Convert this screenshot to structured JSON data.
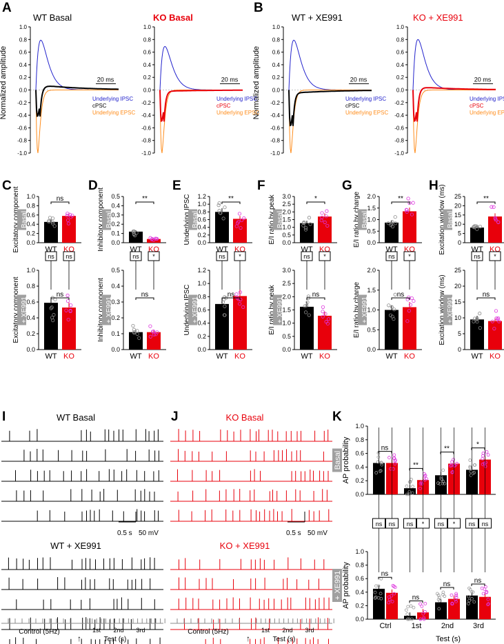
{
  "colors": {
    "wt": "#000000",
    "ko": "#e8000b",
    "ipsc": "#2222cc",
    "epsc": "#ff8c1a",
    "ko_dots": "#dd33dd",
    "grey_box": "#a0a0a0"
  },
  "panel_labels": [
    "A",
    "B",
    "C",
    "D",
    "E",
    "F",
    "G",
    "H",
    "I",
    "J",
    "K"
  ],
  "traces": {
    "wt_basal_title": "WT  Basal",
    "ko_basal_title": "KO  Basal",
    "wt_xe_title": "WT + XE991",
    "ko_xe_title": "KO + XE991",
    "y_label": "Normalized amplitude",
    "y_ticks": [
      "1.0",
      "0.8",
      "0.6",
      "0.4",
      "0.2",
      "0.0",
      "-0.2",
      "-0.4",
      "-0.6",
      "-0.8",
      "-1.0"
    ],
    "scale": "20 ms",
    "legend": [
      "Underlying IPSC",
      "cPSC",
      "Underlying EPSC"
    ]
  },
  "bars": {
    "row_basal": "Basal",
    "row_xe": "+ XE991",
    "x_labels": [
      "WT",
      "KO"
    ],
    "panels": [
      {
        "id": "C",
        "top_ylabel": "Excitatory component",
        "bot_ylabel": "Excitatory component",
        "top_ticks": [
          "0.0",
          "0.2",
          "0.4",
          "0.6",
          "0.8",
          "1.0"
        ],
        "bot_ticks": [
          "0.0",
          "0.2",
          "0.4",
          "0.6",
          "0.8",
          "1.0"
        ],
        "top_sig": "ns",
        "bot_sig": "ns",
        "box_l": "ns",
        "box_r": "ns"
      },
      {
        "id": "D",
        "top_ylabel": "Inhibitory component",
        "bot_ylabel": "Inhibitory component",
        "top_ticks": [
          "0.0",
          "0.1",
          "0.2",
          "0.3",
          "0.4",
          "0.5"
        ],
        "bot_ticks": [
          "0.0",
          "0.1",
          "0.2",
          "0.3",
          "0.4",
          "0.5"
        ],
        "top_sig": "**",
        "bot_sig": "ns",
        "box_l": "ns",
        "box_r": "*"
      },
      {
        "id": "E",
        "top_ylabel": "Underlying IPSC",
        "bot_ylabel": "Underlying IPSC",
        "top_ticks": [
          "0.0",
          "0.2",
          "0.4",
          "0.6",
          "0.8",
          "1.0",
          "1.2"
        ],
        "bot_ticks": [
          "0.0",
          "0.2",
          "0.4",
          "0.6",
          "0.8",
          "1.0",
          "1.2"
        ],
        "top_sig": "**",
        "bot_sig": "ns",
        "box_l": "ns",
        "box_r": "*"
      },
      {
        "id": "F",
        "top_ylabel": "E/I ratio by peak",
        "bot_ylabel": "E/I ratio by peak",
        "top_ticks": [
          "0.0",
          "0.5",
          "1.0",
          "1.5",
          "2.0",
          "2.5",
          "3.0"
        ],
        "bot_ticks": [
          "0.0",
          "0.5",
          "1.0",
          "1.5",
          "2.0",
          "2.5",
          "3.0"
        ],
        "top_sig": "*",
        "bot_sig": "ns",
        "box_l": "ns",
        "box_r": "*"
      },
      {
        "id": "G",
        "top_ylabel": "E/I ratio by charge",
        "bot_ylabel": "E/I ratio by charge",
        "top_ticks": [
          "0.0",
          "0.5",
          "1.0",
          "1.5",
          "2.0"
        ],
        "bot_ticks": [
          "0.0",
          "0.5",
          "1.0",
          "1.5",
          "2.0"
        ],
        "top_sig": "**",
        "bot_sig": "ns",
        "box_l": "ns",
        "box_r": "*"
      },
      {
        "id": "H",
        "top_ylabel": "Excitation window (ms)",
        "bot_ylabel": "Excitation window (ms)",
        "top_ticks": [
          "0",
          "5",
          "10",
          "15",
          "20",
          "25"
        ],
        "bot_ticks": [
          "0",
          "5",
          "10",
          "15",
          "20",
          "25"
        ],
        "top_sig": "**",
        "bot_sig": "ns",
        "box_l": "ns",
        "box_r": "*"
      }
    ]
  },
  "chart_data": [
    {
      "type": "bar",
      "panel": "C",
      "row": "Basal",
      "categories": [
        "WT",
        "KO"
      ],
      "values": [
        0.45,
        0.58
      ],
      "ylim": [
        0,
        1.0
      ],
      "ylabel": "Excitatory component"
    },
    {
      "type": "bar",
      "panel": "C",
      "row": "+ XE991",
      "categories": [
        "WT",
        "KO"
      ],
      "values": [
        0.59,
        0.53
      ],
      "ylim": [
        0,
        1.0
      ],
      "ylabel": "Excitatory component"
    },
    {
      "type": "bar",
      "panel": "D",
      "row": "Basal",
      "categories": [
        "WT",
        "KO"
      ],
      "values": [
        0.12,
        0.04
      ],
      "ylim": [
        0,
        0.5
      ],
      "ylabel": "Inhibitory component"
    },
    {
      "type": "bar",
      "panel": "D",
      "row": "+ XE991",
      "categories": [
        "WT",
        "KO"
      ],
      "values": [
        0.11,
        0.11
      ],
      "ylim": [
        0,
        0.5
      ],
      "ylabel": "Inhibitory component"
    },
    {
      "type": "bar",
      "panel": "E",
      "row": "Basal",
      "categories": [
        "WT",
        "KO"
      ],
      "values": [
        0.8,
        0.62
      ],
      "ylim": [
        0,
        1.2
      ],
      "ylabel": "Underlying IPSC"
    },
    {
      "type": "bar",
      "panel": "E",
      "row": "+ XE991",
      "categories": [
        "WT",
        "KO"
      ],
      "values": [
        0.69,
        0.81
      ],
      "ylim": [
        0,
        1.2
      ],
      "ylabel": "Underlying IPSC"
    },
    {
      "type": "bar",
      "panel": "F",
      "row": "Basal",
      "categories": [
        "WT",
        "KO"
      ],
      "values": [
        1.27,
        1.7
      ],
      "ylim": [
        0,
        3.0
      ],
      "ylabel": "E/I ratio by peak"
    },
    {
      "type": "bar",
      "panel": "F",
      "row": "+ XE991",
      "categories": [
        "WT",
        "KO"
      ],
      "values": [
        1.62,
        1.28
      ],
      "ylim": [
        0,
        3.0
      ],
      "ylabel": "E/I ratio by peak"
    },
    {
      "type": "bar",
      "panel": "G",
      "row": "Basal",
      "categories": [
        "WT",
        "KO"
      ],
      "values": [
        0.87,
        1.36
      ],
      "ylim": [
        0,
        2.0
      ],
      "ylabel": "E/I ratio by charge"
    },
    {
      "type": "bar",
      "panel": "G",
      "row": "+ XE991",
      "categories": [
        "WT",
        "KO"
      ],
      "values": [
        1.0,
        1.07
      ],
      "ylim": [
        0,
        2.0
      ],
      "ylabel": "E/I ratio by charge"
    },
    {
      "type": "bar",
      "panel": "H",
      "row": "Basal",
      "categories": [
        "WT",
        "KO"
      ],
      "values": [
        8.2,
        14.2
      ],
      "ylim": [
        0,
        25
      ],
      "ylabel": "Excitation window (ms)"
    },
    {
      "type": "bar",
      "panel": "H",
      "row": "+ XE991",
      "categories": [
        "WT",
        "KO"
      ],
      "values": [
        9.5,
        9.0
      ],
      "ylim": [
        0,
        25
      ],
      "ylabel": "Excitation window (ms)"
    },
    {
      "type": "bar",
      "panel": "K",
      "row": "Basal",
      "categories": [
        "Ctrl",
        "1st",
        "2nd",
        "3rd"
      ],
      "series": [
        {
          "name": "WT",
          "values": [
            0.46,
            0.09,
            0.28,
            0.36
          ]
        },
        {
          "name": "KO",
          "values": [
            0.46,
            0.21,
            0.45,
            0.51
          ]
        }
      ],
      "ylim": [
        0,
        1.0
      ],
      "ylabel": "AP probability",
      "xlabel": "Test (s)",
      "significance": [
        "ns",
        "**",
        "**",
        "*"
      ]
    },
    {
      "type": "bar",
      "panel": "K",
      "row": "+ XE991",
      "categories": [
        "Ctrl",
        "1st",
        "2nd",
        "3rd"
      ],
      "series": [
        {
          "name": "WT",
          "values": [
            0.45,
            0.05,
            0.25,
            0.35
          ]
        },
        {
          "name": "KO",
          "values": [
            0.39,
            0.1,
            0.3,
            0.33
          ]
        }
      ],
      "ylim": [
        0,
        1.0
      ],
      "ylabel": "AP probability",
      "xlabel": "Test (s)",
      "significance": [
        "ns",
        "ns",
        "ns",
        "ns"
      ]
    }
  ],
  "spikes": {
    "wt_basal_title": "WT  Basal",
    "wt_xe_title": "WT + XE991",
    "ko_basal_title": "KO  Basal",
    "ko_xe_title": "KO + XE991",
    "scale": "0.5 s",
    "scale_mv": "50 mV",
    "control_label": "Control (5Hz)",
    "test_label": "Test (s)",
    "bins": [
      "1st",
      "2nd",
      "3rd"
    ]
  },
  "k": {
    "y_ticks": [
      "0.0",
      "0.2",
      "0.4",
      "0.6",
      "0.8",
      "1.0"
    ],
    "ylabel": "AP probability",
    "cats": [
      "Ctrl",
      "1st",
      "2nd",
      "3rd"
    ],
    "xlabel": "Test (s)",
    "boxes": [
      "ns",
      "ns",
      "ns",
      "*",
      "ns",
      "*",
      "ns",
      "ns"
    ],
    "top_sig": [
      "ns",
      "**",
      "**",
      "*"
    ],
    "bot_sig": [
      "ns",
      "ns",
      "ns",
      "ns"
    ]
  }
}
